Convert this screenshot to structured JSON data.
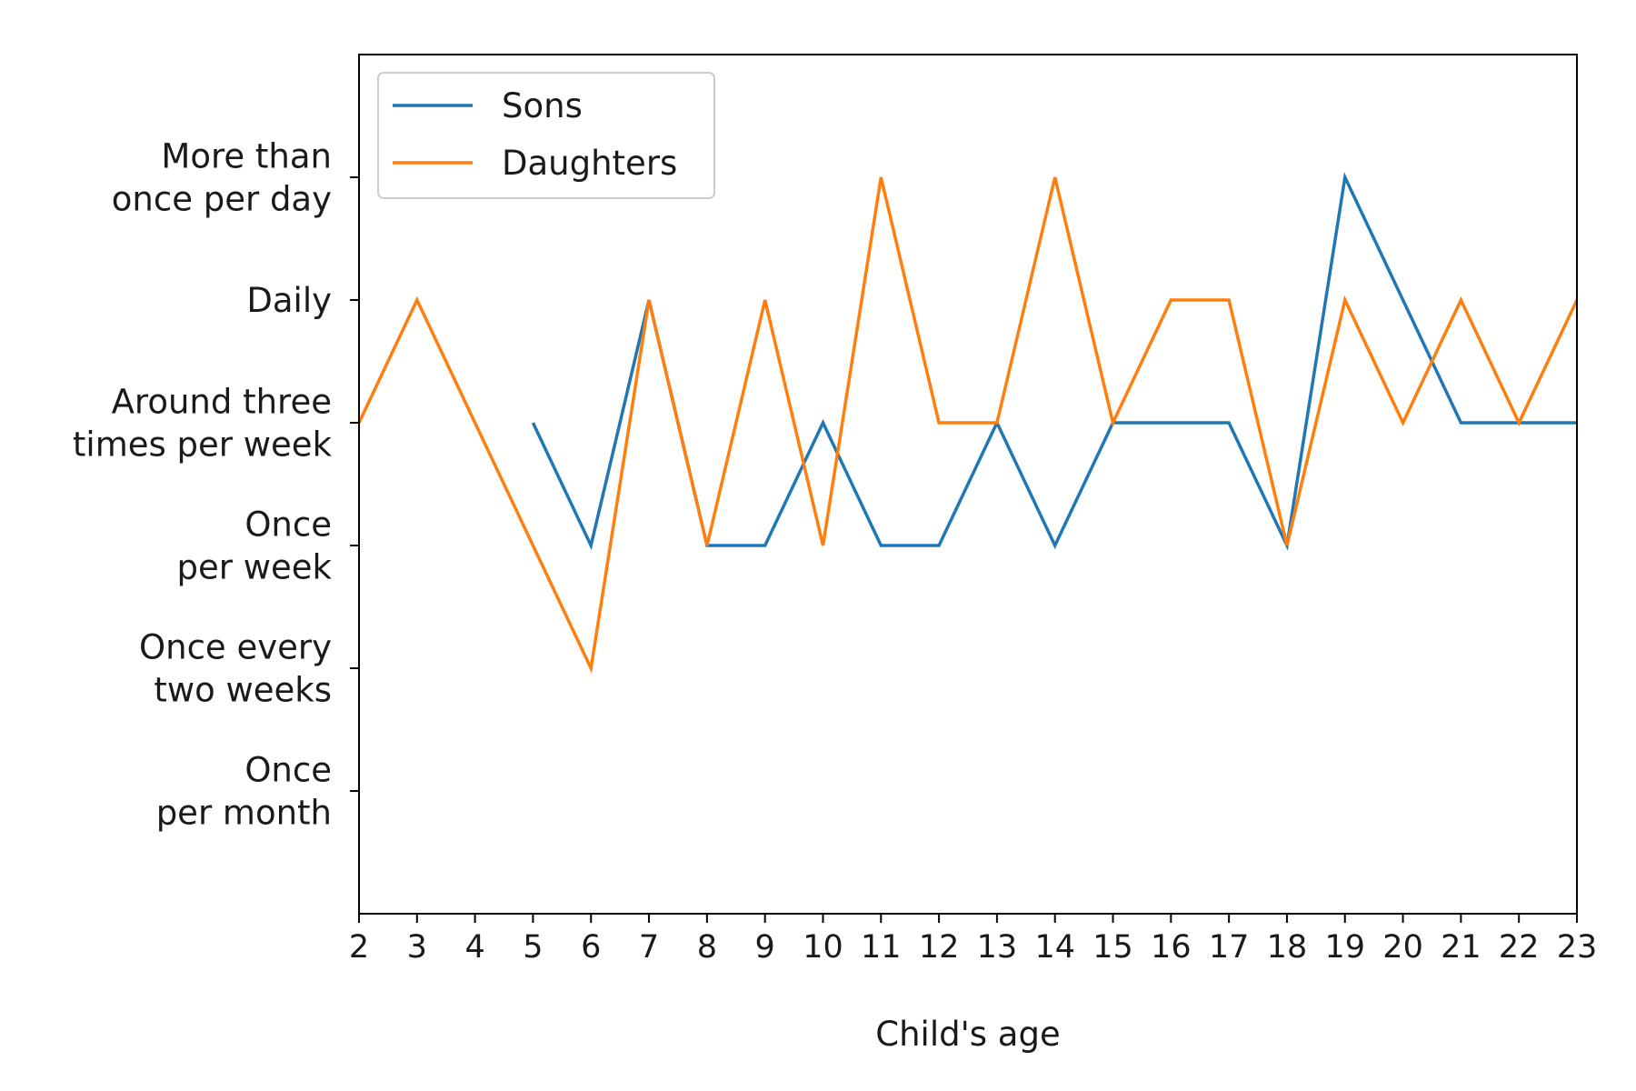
{
  "chart_data": {
    "type": "line",
    "title": "",
    "xlabel": "Child's age",
    "ylabel": "",
    "x": [
      2,
      3,
      4,
      5,
      6,
      7,
      8,
      9,
      10,
      11,
      12,
      13,
      14,
      15,
      16,
      17,
      18,
      19,
      20,
      21,
      22,
      23
    ],
    "xlim": [
      2,
      23
    ],
    "ylim": [
      -1,
      6
    ],
    "grid": false,
    "legend_position": "top-left",
    "yticks": [
      {
        "value": 0,
        "lines": [
          "Once",
          "per month"
        ]
      },
      {
        "value": 1,
        "lines": [
          "Once every",
          "two weeks"
        ]
      },
      {
        "value": 2,
        "lines": [
          "Once",
          "per week"
        ]
      },
      {
        "value": 3,
        "lines": [
          "Around three",
          "times per week"
        ]
      },
      {
        "value": 4,
        "lines": [
          "Daily"
        ]
      },
      {
        "value": 5,
        "lines": [
          "More than",
          "once per day"
        ]
      }
    ],
    "series": [
      {
        "name": "Sons",
        "color": "#1f77b4",
        "values": [
          null,
          null,
          null,
          3,
          2,
          4,
          2,
          2,
          3,
          2,
          2,
          3,
          2,
          3,
          3,
          3,
          2,
          5,
          4,
          3,
          3,
          3
        ]
      },
      {
        "name": "Daughters",
        "color": "#ff7f0e",
        "values": [
          3,
          4,
          3,
          2,
          1,
          4,
          2,
          4,
          2,
          5,
          3,
          3,
          5,
          3,
          4,
          4,
          2,
          4,
          3,
          4,
          3,
          4
        ]
      }
    ]
  }
}
